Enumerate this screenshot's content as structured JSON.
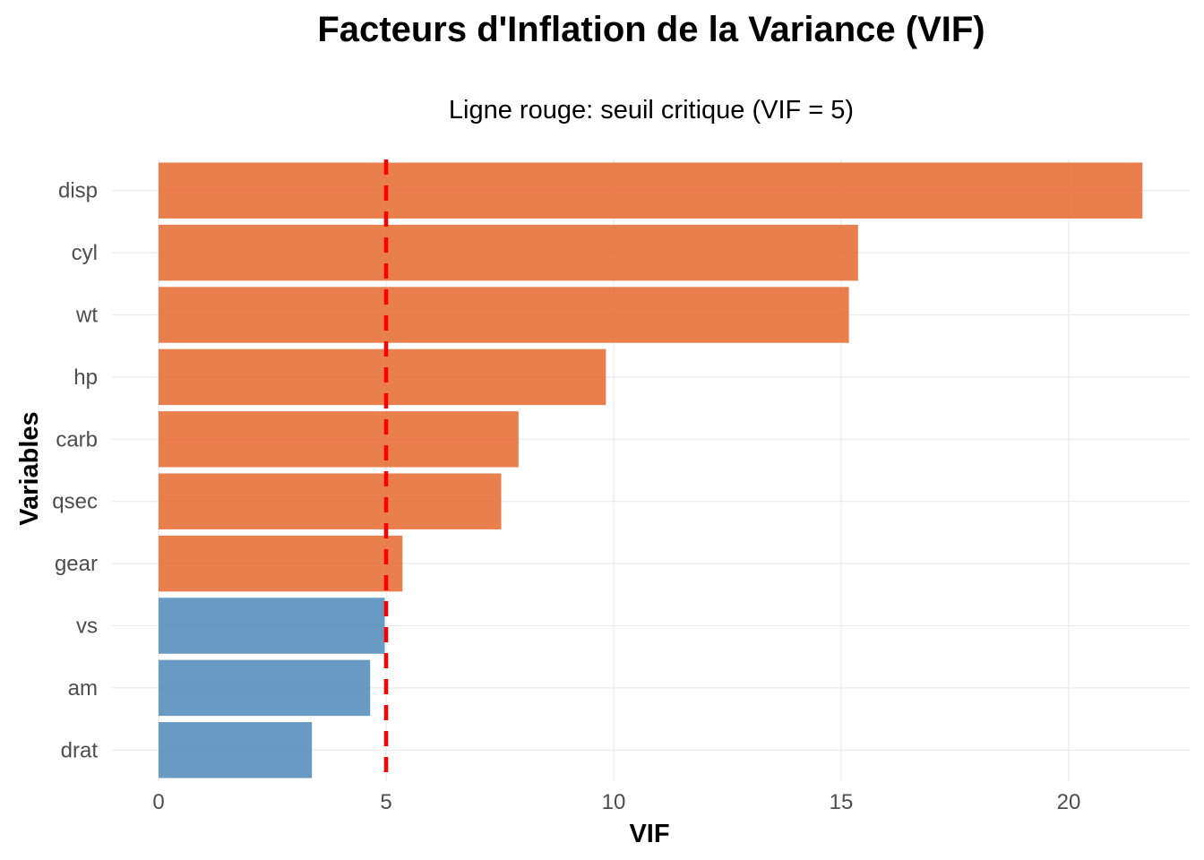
{
  "chart_data": {
    "type": "bar",
    "orientation": "horizontal",
    "title": "Facteurs d'Inflation de la Variance (VIF)",
    "subtitle": "Ligne rouge: seuil critique (VIF = 5)",
    "xlabel": "VIF",
    "ylabel": "Variables",
    "categories": [
      "disp",
      "cyl",
      "wt",
      "hp",
      "carb",
      "qsec",
      "gear",
      "vs",
      "am",
      "drat"
    ],
    "values": [
      21.62,
      15.37,
      15.17,
      9.83,
      7.91,
      7.53,
      5.36,
      4.97,
      4.65,
      3.37
    ],
    "xlim": [
      0,
      22
    ],
    "xticks": [
      0,
      5,
      10,
      15,
      20
    ],
    "xtick_labels": [
      "0",
      "5",
      "10",
      "15",
      "20"
    ],
    "threshold": 5,
    "threshold_color": "#ff0000",
    "color_above_threshold": "#e6692f",
    "color_below_threshold": "#4f88ba",
    "grid": true,
    "legend": "none"
  }
}
